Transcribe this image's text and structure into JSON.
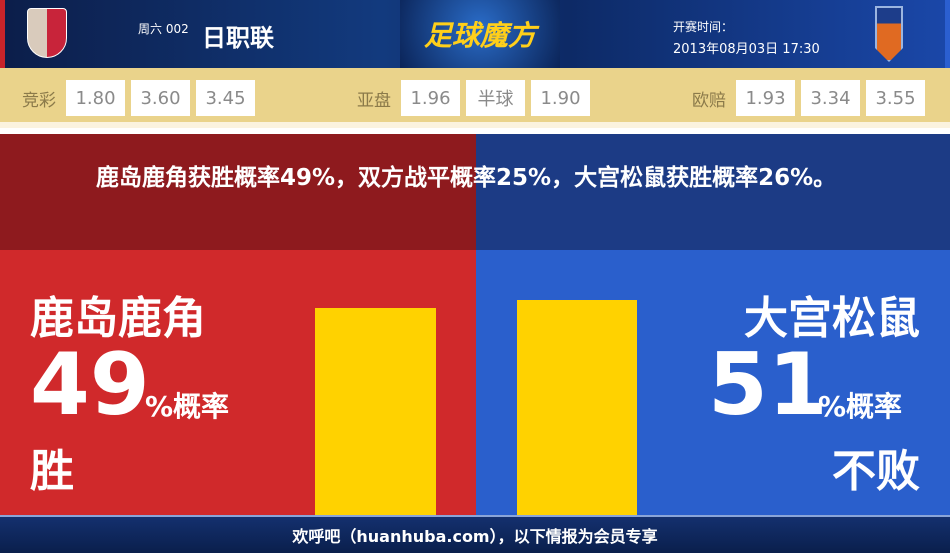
{
  "header": {
    "weekday": "周六 002",
    "league": "日职联",
    "brand": "足球魔方",
    "time_label": "开赛时间：",
    "kickoff": "2013年08月03日 17:30",
    "home_logo": "kashima-antlers-crest",
    "away_logo": "omiya-ardija-crest"
  },
  "odds": {
    "jingcai": {
      "label": "竞彩",
      "values": [
        "1.80",
        "3.60",
        "3.45"
      ]
    },
    "yapan": {
      "label": "亚盘",
      "values": [
        "1.96",
        "半球",
        "1.90"
      ]
    },
    "oupei": {
      "label": "欧赔",
      "values": [
        "1.93",
        "3.34",
        "3.55"
      ]
    }
  },
  "summary": "鹿岛鹿角获胜概率49%，双方战平概率25%，大宫松鼠获胜概率26%。",
  "home": {
    "team": "鹿岛鹿角",
    "percent": "49",
    "pct_label": "%概率",
    "result": "胜",
    "bar_value": 49,
    "color": "#d0292b"
  },
  "away": {
    "team": "大宫松鼠",
    "percent": "51",
    "pct_label": "%概率",
    "result": "不败",
    "bar_value": 51,
    "color": "#2a5fcc"
  },
  "footer": "欢呼吧（huanhuba.com），以下情报为会员专享"
}
